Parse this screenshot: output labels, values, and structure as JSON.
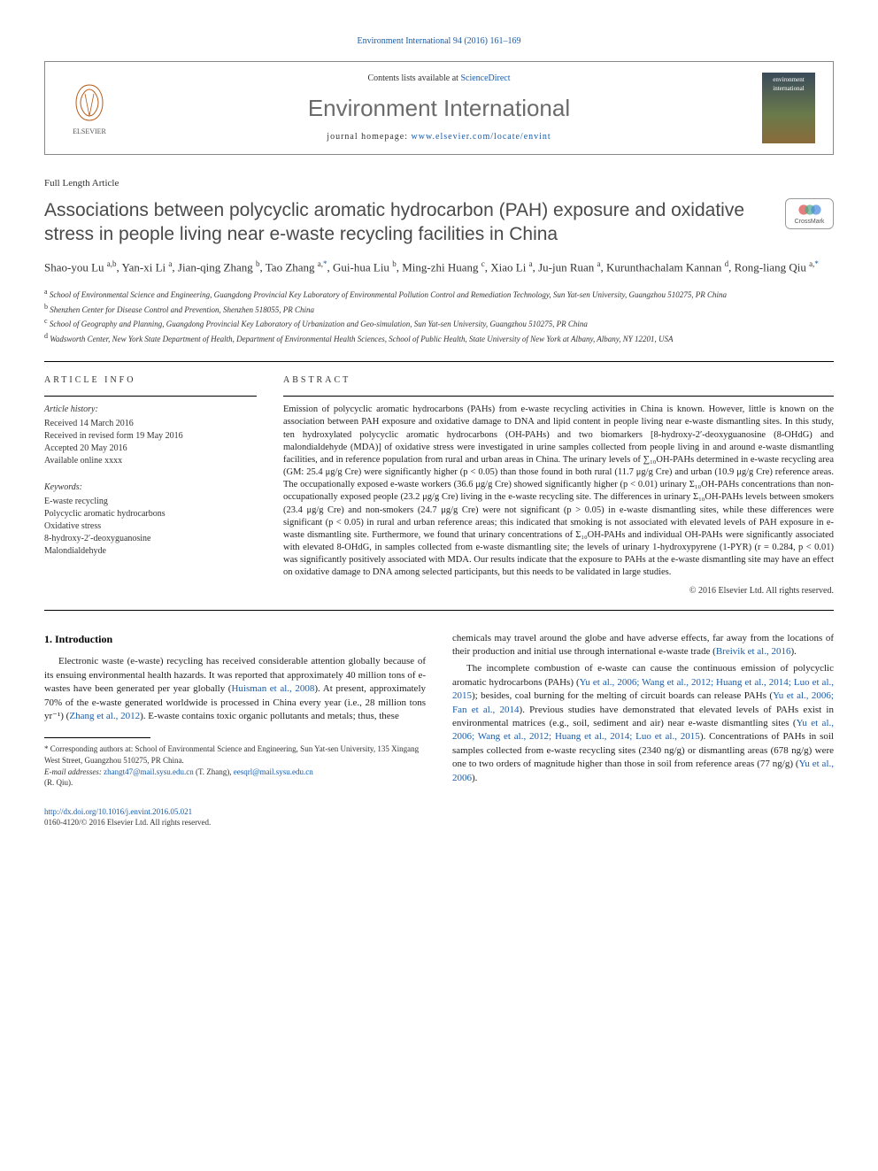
{
  "top_link": "Environment International 94 (2016) 161–169",
  "header": {
    "contents_prefix": "Contents lists available at ",
    "contents_link": "ScienceDirect",
    "journal_title": "Environment International",
    "homepage_prefix": "journal homepage: ",
    "homepage_link": "www.elsevier.com/locate/envint",
    "publisher": "ELSEVIER",
    "cover_line1": "environment",
    "cover_line2": "international"
  },
  "article": {
    "type": "Full Length Article",
    "title": "Associations between polycyclic aromatic hydrocarbon (PAH) exposure and oxidative stress in people living near e-waste recycling facilities in China",
    "crossmark": "CrossMark",
    "authors_html": "Shao-you Lu <sup>a,b</sup>, Yan-xi Li <sup>a</sup>, Jian-qing Zhang <sup>b</sup>, Tao Zhang <sup>a,*</sup>, Gui-hua Liu <sup>b</sup>, Ming-zhi Huang <sup>c</sup>, Xiao Li <sup>a</sup>, Ju-jun Ruan <sup>a</sup>, Kurunthachalam Kannan <sup>d</sup>, Rong-liang Qiu <sup>a,*</sup>",
    "affiliations": [
      {
        "mark": "a",
        "text": "School of Environmental Science and Engineering, Guangdong Provincial Key Laboratory of Environmental Pollution Control and Remediation Technology, Sun Yat-sen University, Guangzhou 510275, PR China"
      },
      {
        "mark": "b",
        "text": "Shenzhen Center for Disease Control and Prevention, Shenzhen 518055, PR China"
      },
      {
        "mark": "c",
        "text": "School of Geography and Planning, Guangdong Provincial Key Laboratory of Urbanization and Geo-simulation, Sun Yat-sen University, Guangzhou 510275, PR China"
      },
      {
        "mark": "d",
        "text": "Wadsworth Center, New York State Department of Health, Department of Environmental Health Sciences, School of Public Health, State University of New York at Albany, Albany, NY 12201, USA"
      }
    ]
  },
  "info": {
    "label": "ARTICLE INFO",
    "history_head": "Article history:",
    "history": [
      "Received 14 March 2016",
      "Received in revised form 19 May 2016",
      "Accepted 20 May 2016",
      "Available online xxxx"
    ],
    "keywords_head": "Keywords:",
    "keywords": [
      "E-waste recycling",
      "Polycyclic aromatic hydrocarbons",
      "Oxidative stress",
      "8-hydroxy-2′-deoxyguanosine",
      "Malondialdehyde"
    ]
  },
  "abstract": {
    "label": "ABSTRACT",
    "text": "Emission of polycyclic aromatic hydrocarbons (PAHs) from e-waste recycling activities in China is known. However, little is known on the association between PAH exposure and oxidative damage to DNA and lipid content in people living near e-waste dismantling sites. In this study, ten hydroxylated polycyclic aromatic hydrocarbons (OH-PAHs) and two biomarkers [8-hydroxy-2′-deoxyguanosine (8-OHdG) and malondialdehyde (MDA)] of oxidative stress were investigated in urine samples collected from people living in and around e-waste dismantling facilities, and in reference population from rural and urban areas in China. The urinary levels of ∑₁₀OH-PAHs determined in e-waste recycling area (GM: 25.4 μg/g Cre) were significantly higher (p < 0.05) than those found in both rural (11.7 μg/g Cre) and urban (10.9 μg/g Cre) reference areas. The occupationally exposed e-waste workers (36.6 μg/g Cre) showed significantly higher (p < 0.01) urinary Σ₁₀OH-PAHs concentrations than non-occupationally exposed people (23.2 μg/g Cre) living in the e-waste recycling site. The differences in urinary Σ₁₀OH-PAHs levels between smokers (23.4 μg/g Cre) and non-smokers (24.7 μg/g Cre) were not significant (p > 0.05) in e-waste dismantling sites, while these differences were significant (p < 0.05) in rural and urban reference areas; this indicated that smoking is not associated with elevated levels of PAH exposure in e-waste dismantling site. Furthermore, we found that urinary concentrations of Σ₁₀OH-PAHs and individual OH-PAHs were significantly associated with elevated 8-OHdG, in samples collected from e-waste dismantling site; the levels of urinary 1-hydroxypyrene (1-PYR) (r = 0.284, p < 0.01) was significantly positively associated with MDA. Our results indicate that the exposure to PAHs at the e-waste dismantling site may have an effect on oxidative damage to DNA among selected participants, but this needs to be validated in large studies.",
    "copyright": "© 2016 Elsevier Ltd. All rights reserved."
  },
  "body": {
    "intro_heading": "1. Introduction",
    "left_p1": "Electronic waste (e-waste) recycling has received considerable attention globally because of its ensuing environmental health hazards. It was reported that approximately 40 million tons of e-wastes have been generated per year globally (Huisman et al., 2008). At present, approximately 70% of the e-waste generated worldwide is processed in China every year (i.e., 28 million tons yr⁻¹) (Zhang et al., 2012). E-waste contains toxic organic pollutants and metals; thus, these",
    "right_p1": "chemicals may travel around the globe and have adverse effects, far away from the locations of their production and initial use through international e-waste trade (Breivik et al., 2016).",
    "right_p2": "The incomplete combustion of e-waste can cause the continuous emission of polycyclic aromatic hydrocarbons (PAHs) (Yu et al., 2006; Wang et al., 2012; Huang et al., 2014; Luo et al., 2015); besides, coal burning for the melting of circuit boards can release PAHs (Yu et al., 2006; Fan et al., 2014). Previous studies have demonstrated that elevated levels of PAHs exist in environmental matrices (e.g., soil, sediment and air) near e-waste dismantling sites (Yu et al., 2006; Wang et al., 2012; Huang et al., 2014; Luo et al., 2015). Concentrations of PAHs in soil samples collected from e-waste recycling sites (2340 ng/g) or dismantling areas (678 ng/g) were one to two orders of magnitude higher than those in soil from reference areas (77 ng/g) (Yu et al., 2006)."
  },
  "footnotes": {
    "corr": "* Corresponding authors at: School of Environmental Science and Engineering, Sun Yat-sen University, 135 Xingang West Street, Guangzhou 510275, PR China.",
    "email_label": "E-mail addresses: ",
    "email1": "zhangt47@mail.sysu.edu.cn",
    "email1_who": " (T. Zhang), ",
    "email2": "eesqrl@mail.sysu.edu.cn",
    "email2_who": " (R. Qiu)."
  },
  "footer": {
    "doi": "http://dx.doi.org/10.1016/j.envint.2016.05.021",
    "issn": "0160-4120/© 2016 Elsevier Ltd. All rights reserved."
  },
  "colors": {
    "link": "#1a5ca8",
    "gray_title": "#6b6b6b",
    "text": "#222222"
  }
}
